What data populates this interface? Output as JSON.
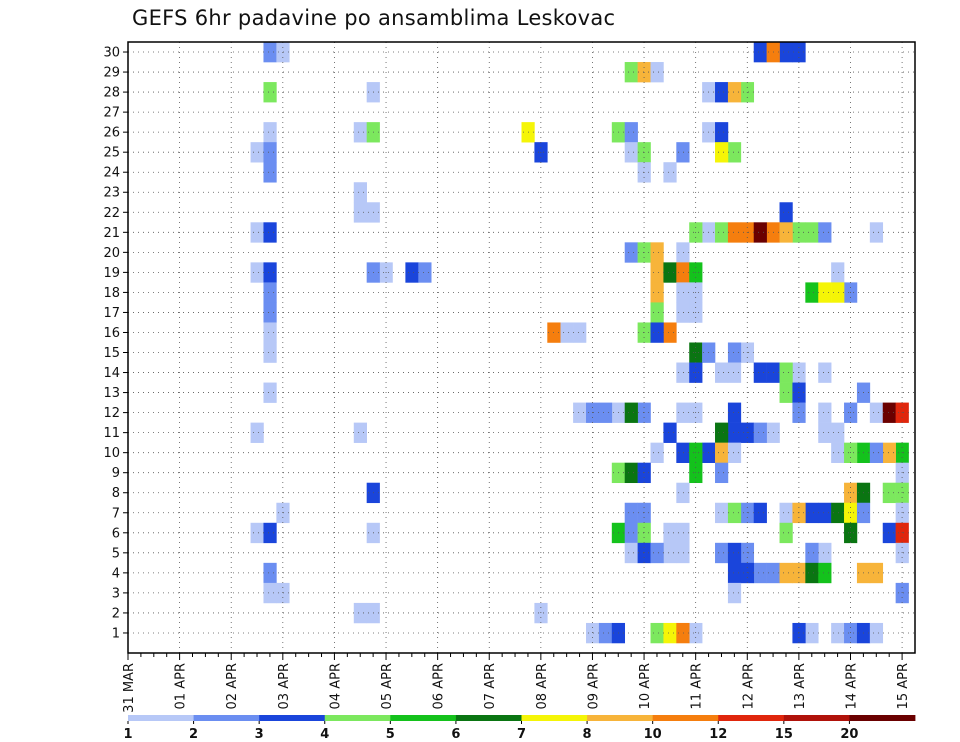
{
  "chart_data": {
    "type": "heatmap",
    "title": "GEFS 6hr padavine po ansamblima Leskovac",
    "xlabel": "",
    "ylabel": "",
    "x_tick_labels": [
      "31 MAR",
      "01 APR",
      "02 APR",
      "03 APR",
      "04 APR",
      "05 APR",
      "06 APR",
      "07 APR",
      "08 APR",
      "09 APR",
      "10 APR",
      "11 APR",
      "12 APR",
      "13 APR",
      "14 APR",
      "15 APR"
    ],
    "x_steps_per_day": 4,
    "x_step_count": 61,
    "y_tick_labels": [
      1,
      2,
      3,
      4,
      5,
      6,
      7,
      8,
      9,
      10,
      11,
      12,
      13,
      14,
      15,
      16,
      17,
      18,
      19,
      20,
      21,
      22,
      23,
      24,
      25,
      26,
      27,
      28,
      29,
      30
    ],
    "grid": true,
    "colorbar": {
      "ticks": [
        1,
        2,
        3,
        4,
        5,
        6,
        7,
        8,
        10,
        12,
        15,
        20
      ],
      "colors": [
        "#b7c8f7",
        "#6b8ef1",
        "#1a45db",
        "#7ce85e",
        "#14c21c",
        "#0a7512",
        "#f5f507",
        "#f7b43a",
        "#f57e0e",
        "#e0260c",
        "#b0120a",
        "#6a0000"
      ]
    },
    "cells": [
      {
        "member": 30,
        "color": "#6b8ef1",
        "steps": [
          11
        ]
      },
      {
        "member": 30,
        "color": "#b7c8f7",
        "steps": [
          12
        ]
      },
      {
        "member": 30,
        "color": "#1a45db",
        "steps": [
          49,
          51,
          52
        ]
      },
      {
        "member": 30,
        "color": "#f57e0e",
        "steps": [
          50
        ]
      },
      {
        "member": 29,
        "color": "#7ce85e",
        "steps": [
          39
        ]
      },
      {
        "member": 29,
        "color": "#f7b43a",
        "steps": [
          40
        ]
      },
      {
        "member": 29,
        "color": "#b7c8f7",
        "steps": [
          41
        ]
      },
      {
        "member": 28,
        "color": "#7ce85e",
        "steps": [
          11,
          48
        ]
      },
      {
        "member": 28,
        "color": "#b7c8f7",
        "steps": [
          19,
          45
        ]
      },
      {
        "member": 28,
        "color": "#1a45db",
        "steps": [
          46
        ]
      },
      {
        "member": 28,
        "color": "#f7b43a",
        "steps": [
          47
        ]
      },
      {
        "member": 26,
        "color": "#b7c8f7",
        "steps": [
          11,
          18,
          45
        ]
      },
      {
        "member": 26,
        "color": "#7ce85e",
        "steps": [
          19,
          38
        ]
      },
      {
        "member": 26,
        "color": "#f5f507",
        "steps": [
          31
        ]
      },
      {
        "member": 26,
        "color": "#6b8ef1",
        "steps": [
          39
        ]
      },
      {
        "member": 26,
        "color": "#1a45db",
        "steps": [
          46
        ]
      },
      {
        "member": 25,
        "color": "#b7c8f7",
        "steps": [
          10,
          39
        ]
      },
      {
        "member": 25,
        "color": "#6b8ef1",
        "steps": [
          11,
          43
        ]
      },
      {
        "member": 25,
        "color": "#1a45db",
        "steps": [
          32
        ]
      },
      {
        "member": 25,
        "color": "#7ce85e",
        "steps": [
          40,
          47
        ]
      },
      {
        "member": 25,
        "color": "#f5f507",
        "steps": [
          46
        ]
      },
      {
        "member": 24,
        "color": "#6b8ef1",
        "steps": [
          11
        ]
      },
      {
        "member": 24,
        "color": "#b7c8f7",
        "steps": [
          40,
          42
        ]
      },
      {
        "member": 23,
        "color": "#b7c8f7",
        "steps": [
          18
        ]
      },
      {
        "member": 22,
        "color": "#b7c8f7",
        "steps": [
          18,
          19
        ]
      },
      {
        "member": 22,
        "color": "#1a45db",
        "steps": [
          51
        ]
      },
      {
        "member": 21,
        "color": "#b7c8f7",
        "steps": [
          10,
          45,
          58
        ]
      },
      {
        "member": 21,
        "color": "#1a45db",
        "steps": [
          11
        ]
      },
      {
        "member": 21,
        "color": "#7ce85e",
        "steps": [
          44,
          46,
          52,
          53
        ]
      },
      {
        "member": 21,
        "color": "#f57e0e",
        "steps": [
          47,
          48,
          50
        ]
      },
      {
        "member": 21,
        "color": "#6a0000",
        "steps": [
          49
        ]
      },
      {
        "member": 21,
        "color": "#f7b43a",
        "steps": [
          51
        ]
      },
      {
        "member": 21,
        "color": "#6b8ef1",
        "steps": [
          54
        ]
      },
      {
        "member": 20,
        "color": "#6b8ef1",
        "steps": [
          39
        ]
      },
      {
        "member": 20,
        "color": "#7ce85e",
        "steps": [
          40
        ]
      },
      {
        "member": 20,
        "color": "#f7b43a",
        "steps": [
          41
        ]
      },
      {
        "member": 20,
        "color": "#b7c8f7",
        "steps": [
          43
        ]
      },
      {
        "member": 19,
        "color": "#b7c8f7",
        "steps": [
          10,
          20,
          55
        ]
      },
      {
        "member": 19,
        "color": "#1a45db",
        "steps": [
          11,
          22
        ]
      },
      {
        "member": 19,
        "color": "#6b8ef1",
        "steps": [
          19,
          23
        ]
      },
      {
        "member": 19,
        "color": "#f7b43a",
        "steps": [
          41
        ]
      },
      {
        "member": 19,
        "color": "#0a7512",
        "steps": [
          42
        ]
      },
      {
        "member": 19,
        "color": "#f57e0e",
        "steps": [
          43
        ]
      },
      {
        "member": 19,
        "color": "#14c21c",
        "steps": [
          44
        ]
      },
      {
        "member": 18,
        "color": "#6b8ef1",
        "steps": [
          11,
          56
        ]
      },
      {
        "member": 18,
        "color": "#f7b43a",
        "steps": [
          41
        ]
      },
      {
        "member": 18,
        "color": "#b7c8f7",
        "steps": [
          43,
          44
        ]
      },
      {
        "member": 18,
        "color": "#14c21c",
        "steps": [
          53
        ]
      },
      {
        "member": 18,
        "color": "#f5f507",
        "steps": [
          54,
          55
        ]
      },
      {
        "member": 17,
        "color": "#6b8ef1",
        "steps": [
          11
        ]
      },
      {
        "member": 17,
        "color": "#7ce85e",
        "steps": [
          41
        ]
      },
      {
        "member": 17,
        "color": "#b7c8f7",
        "steps": [
          43,
          44
        ]
      },
      {
        "member": 16,
        "color": "#b7c8f7",
        "steps": [
          11,
          34,
          35
        ]
      },
      {
        "member": 16,
        "color": "#f57e0e",
        "steps": [
          33,
          42
        ]
      },
      {
        "member": 16,
        "color": "#7ce85e",
        "steps": [
          40
        ]
      },
      {
        "member": 16,
        "color": "#1a45db",
        "steps": [
          41
        ]
      },
      {
        "member": 15,
        "color": "#b7c8f7",
        "steps": [
          11,
          48
        ]
      },
      {
        "member": 15,
        "color": "#0a7512",
        "steps": [
          44
        ]
      },
      {
        "member": 15,
        "color": "#6b8ef1",
        "steps": [
          45,
          47
        ]
      },
      {
        "member": 14,
        "color": "#b7c8f7",
        "steps": [
          43,
          46,
          47,
          52,
          54
        ]
      },
      {
        "member": 14,
        "color": "#1a45db",
        "steps": [
          44,
          49,
          50
        ]
      },
      {
        "member": 14,
        "color": "#7ce85e",
        "steps": [
          51
        ]
      },
      {
        "member": 13,
        "color": "#b7c8f7",
        "steps": [
          11
        ]
      },
      {
        "member": 13,
        "color": "#7ce85e",
        "steps": [
          51
        ]
      },
      {
        "member": 13,
        "color": "#1a45db",
        "steps": [
          52
        ]
      },
      {
        "member": 13,
        "color": "#6b8ef1",
        "steps": [
          57
        ]
      },
      {
        "member": 12,
        "color": "#b7c8f7",
        "steps": [
          35,
          38,
          43,
          44,
          54,
          58
        ]
      },
      {
        "member": 12,
        "color": "#6b8ef1",
        "steps": [
          36,
          37,
          40,
          52,
          56
        ]
      },
      {
        "member": 12,
        "color": "#0a7512",
        "steps": [
          39
        ]
      },
      {
        "member": 12,
        "color": "#1a45db",
        "steps": [
          47
        ]
      },
      {
        "member": 12,
        "color": "#6a0000",
        "steps": [
          59
        ]
      },
      {
        "member": 12,
        "color": "#e0260c",
        "steps": [
          60
        ]
      },
      {
        "member": 11,
        "color": "#b7c8f7",
        "steps": [
          10,
          18,
          50,
          54,
          55
        ]
      },
      {
        "member": 11,
        "color": "#1a45db",
        "steps": [
          42,
          47,
          48
        ]
      },
      {
        "member": 11,
        "color": "#0a7512",
        "steps": [
          46
        ]
      },
      {
        "member": 11,
        "color": "#6b8ef1",
        "steps": [
          49
        ]
      },
      {
        "member": 10,
        "color": "#b7c8f7",
        "steps": [
          41,
          45
        ]
      },
      {
        "member": 10,
        "color": "#1a45db",
        "steps": [
          43,
          45
        ]
      },
      {
        "member": 10,
        "color": "#14c21c",
        "steps": [
          44,
          57,
          60
        ]
      },
      {
        "member": 10,
        "color": "#f7b43a",
        "steps": [
          46,
          59
        ]
      },
      {
        "member": 10,
        "color": "#b7c8f7",
        "steps": [
          47,
          55
        ]
      },
      {
        "member": 10,
        "color": "#7ce85e",
        "steps": [
          56
        ]
      },
      {
        "member": 10,
        "color": "#6b8ef1",
        "steps": [
          58
        ]
      },
      {
        "member": 9,
        "color": "#7ce85e",
        "steps": [
          38
        ]
      },
      {
        "member": 9,
        "color": "#0a7512",
        "steps": [
          39
        ]
      },
      {
        "member": 9,
        "color": "#1a45db",
        "steps": [
          40
        ]
      },
      {
        "member": 9,
        "color": "#14c21c",
        "steps": [
          44
        ]
      },
      {
        "member": 9,
        "color": "#6b8ef1",
        "steps": [
          46
        ]
      },
      {
        "member": 9,
        "color": "#b7c8f7",
        "steps": [
          60
        ]
      },
      {
        "member": 8,
        "color": "#1a45db",
        "steps": [
          19
        ]
      },
      {
        "member": 8,
        "color": "#b7c8f7",
        "steps": [
          43
        ]
      },
      {
        "member": 8,
        "color": "#f7b43a",
        "steps": [
          56
        ]
      },
      {
        "member": 8,
        "color": "#0a7512",
        "steps": [
          57
        ]
      },
      {
        "member": 8,
        "color": "#7ce85e",
        "steps": [
          59,
          60
        ]
      },
      {
        "member": 7,
        "color": "#b7c8f7",
        "steps": [
          12,
          46,
          51,
          60
        ]
      },
      {
        "member": 7,
        "color": "#6b8ef1",
        "steps": [
          39,
          40,
          48
        ]
      },
      {
        "member": 7,
        "color": "#7ce85e",
        "steps": [
          47
        ]
      },
      {
        "member": 7,
        "color": "#1a45db",
        "steps": [
          49,
          53,
          54
        ]
      },
      {
        "member": 7,
        "color": "#f7b43a",
        "steps": [
          52
        ]
      },
      {
        "member": 7,
        "color": "#0a7512",
        "steps": [
          55
        ]
      },
      {
        "member": 7,
        "color": "#f5f507",
        "steps": [
          56
        ]
      },
      {
        "member": 7,
        "color": "#6b8ef1",
        "steps": [
          57
        ]
      },
      {
        "member": 6,
        "color": "#b7c8f7",
        "steps": [
          10,
          19,
          42,
          43
        ]
      },
      {
        "member": 6,
        "color": "#1a45db",
        "steps": [
          11,
          59
        ]
      },
      {
        "member": 6,
        "color": "#14c21c",
        "steps": [
          38
        ]
      },
      {
        "member": 6,
        "color": "#6b8ef1",
        "steps": [
          39
        ]
      },
      {
        "member": 6,
        "color": "#7ce85e",
        "steps": [
          40,
          51
        ]
      },
      {
        "member": 6,
        "color": "#0a7512",
        "steps": [
          56
        ]
      },
      {
        "member": 6,
        "color": "#e0260c",
        "steps": [
          60
        ]
      },
      {
        "member": 5,
        "color": "#b7c8f7",
        "steps": [
          39,
          42,
          43,
          54,
          60
        ]
      },
      {
        "member": 5,
        "color": "#1a45db",
        "steps": [
          40
        ]
      },
      {
        "member": 5,
        "color": "#6b8ef1",
        "steps": [
          41,
          46,
          48,
          53
        ]
      },
      {
        "member": 5,
        "color": "#1a45db",
        "steps": [
          47
        ]
      },
      {
        "member": 4,
        "color": "#6b8ef1",
        "steps": [
          11,
          49,
          50
        ]
      },
      {
        "member": 4,
        "color": "#1a45db",
        "steps": [
          47,
          48
        ]
      },
      {
        "member": 4,
        "color": "#f7b43a",
        "steps": [
          51,
          52,
          57,
          58
        ]
      },
      {
        "member": 4,
        "color": "#0a7512",
        "steps": [
          53
        ]
      },
      {
        "member": 4,
        "color": "#14c21c",
        "steps": [
          54
        ]
      },
      {
        "member": 3,
        "color": "#b7c8f7",
        "steps": [
          11,
          12,
          47
        ]
      },
      {
        "member": 3,
        "color": "#6b8ef1",
        "steps": [
          60
        ]
      },
      {
        "member": 2,
        "color": "#b7c8f7",
        "steps": [
          18,
          19,
          32
        ]
      },
      {
        "member": 1,
        "color": "#b7c8f7",
        "steps": [
          36,
          44,
          53,
          55
        ]
      },
      {
        "member": 1,
        "color": "#6b8ef1",
        "steps": [
          37,
          56
        ]
      },
      {
        "member": 1,
        "color": "#1a45db",
        "steps": [
          38,
          52,
          57
        ]
      },
      {
        "member": 1,
        "color": "#7ce85e",
        "steps": [
          41
        ]
      },
      {
        "member": 1,
        "color": "#f5f507",
        "steps": [
          42
        ]
      },
      {
        "member": 1,
        "color": "#f57e0e",
        "steps": [
          43
        ]
      },
      {
        "member": 1,
        "color": "#b7c8f7",
        "steps": [
          58
        ]
      }
    ]
  }
}
